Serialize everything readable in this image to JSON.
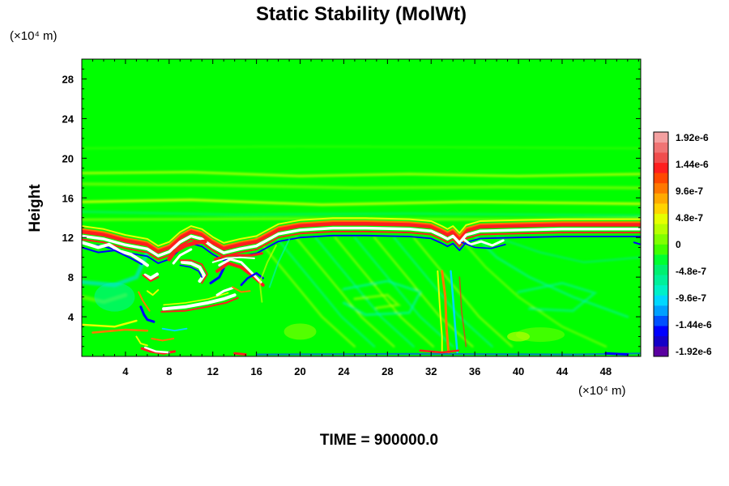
{
  "chart_data": {
    "type": "heatmap",
    "title": "Static Stability (MolWt)",
    "y_unit": "(×10⁴ m)",
    "x_unit": "(×10⁴ m)",
    "ylabel": "Height",
    "xlabel": "",
    "footer": "TIME = 900000.0",
    "xlim": [
      0,
      51.2
    ],
    "ylim": [
      0,
      30
    ],
    "x_ticks": [
      "4",
      "8",
      "12",
      "16",
      "20",
      "24",
      "28",
      "32",
      "36",
      "40",
      "44",
      "48"
    ],
    "x_tick_values": [
      4,
      8,
      12,
      16,
      20,
      24,
      28,
      32,
      36,
      40,
      44,
      48
    ],
    "y_ticks": [
      "4",
      "8",
      "12",
      "16",
      "20",
      "24",
      "28"
    ],
    "y_tick_values": [
      4,
      8,
      12,
      16,
      20,
      24,
      28
    ],
    "colorbar": {
      "labels": [
        "1.92e-6",
        "1.44e-6",
        "9.6e-7",
        "4.8e-7",
        "0",
        "-4.8e-7",
        "-9.6e-7",
        "-1.44e-6",
        "-1.92e-6"
      ],
      "min": -1.92e-06,
      "max": 1.92e-06,
      "colors": [
        "#5a00a0",
        "#1400c8",
        "#0000ff",
        "#0050ff",
        "#00a0ff",
        "#00d8ff",
        "#00f0c8",
        "#00f09a",
        "#00f070",
        "#00ff30",
        "#40ff00",
        "#80ff00",
        "#b8ff00",
        "#e6ff00",
        "#ffd400",
        "#ffaa00",
        "#ff7800",
        "#ff4800",
        "#ff1e1e",
        "#f04d4d",
        "#f07474",
        "#f4a0a0"
      ]
    },
    "features": {
      "background_color": "#00ff00",
      "white_fill_color": "#ffffff",
      "description_hidden": true
    }
  }
}
